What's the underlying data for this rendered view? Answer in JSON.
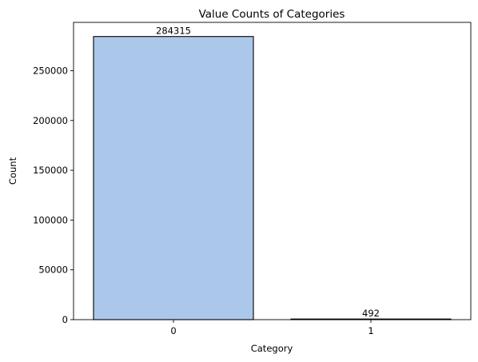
{
  "chart_data": {
    "type": "bar",
    "title": "Value Counts of Categories",
    "xlabel": "Category",
    "ylabel": "Count",
    "categories": [
      "0",
      "1"
    ],
    "values": [
      284315,
      492
    ],
    "data_labels": [
      "284315",
      "492"
    ],
    "ylim": [
      0,
      298530
    ],
    "yticks": [
      0,
      50000,
      100000,
      150000,
      200000,
      250000
    ],
    "ytick_labels": [
      "0",
      "50000",
      "100000",
      "150000",
      "200000",
      "250000"
    ],
    "bar_color": "#abc8eb",
    "edge_color": "#000000",
    "grid": false,
    "legend": "none"
  }
}
